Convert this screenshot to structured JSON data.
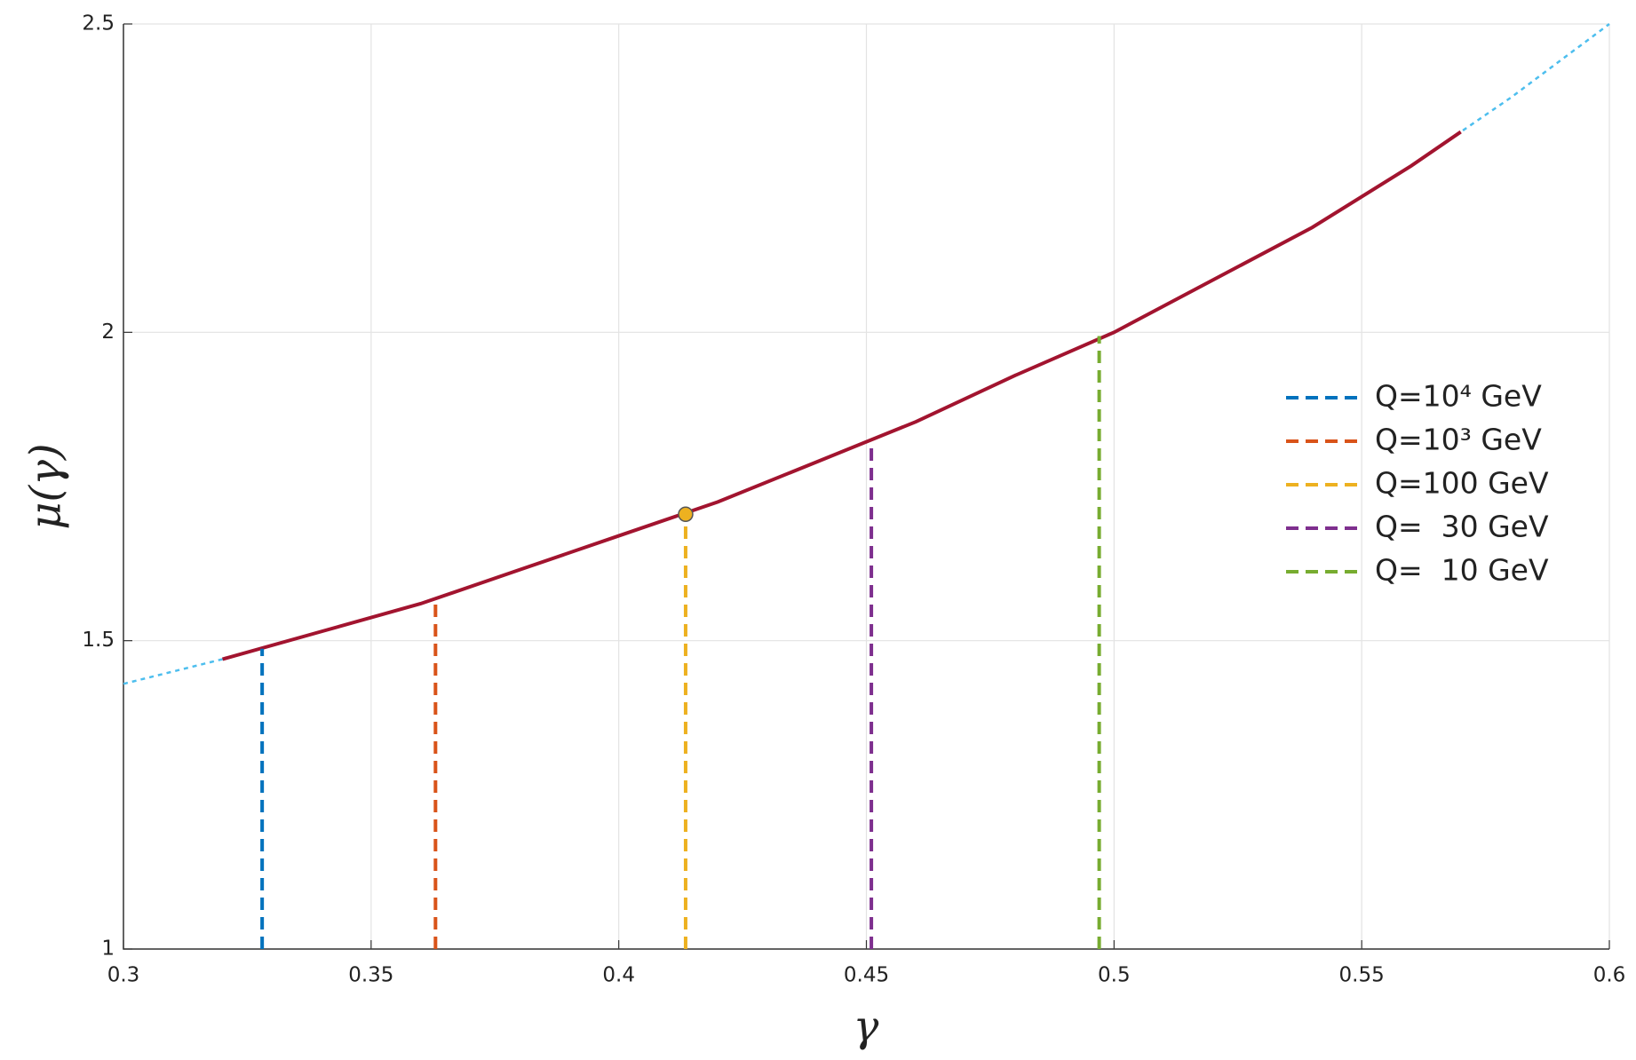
{
  "chart_data": {
    "type": "line",
    "xlabel": "γ",
    "ylabel": "μ(γ)",
    "xlim": [
      0.3,
      0.6
    ],
    "xticks": [
      0.3,
      0.35,
      0.4,
      0.45,
      0.5,
      0.55,
      0.6
    ],
    "ylim": [
      1,
      2.5
    ],
    "yticks": [
      1,
      1.5,
      2,
      2.5
    ],
    "grid": true,
    "legend": "right",
    "series": [
      {
        "color": "#4dbeee",
        "style": "dotted",
        "x": [
          0.3,
          0.32,
          0.34,
          0.36,
          0.38,
          0.4,
          0.42,
          0.44,
          0.46,
          0.48,
          0.5,
          0.52,
          0.54,
          0.56,
          0.58,
          0.6
        ],
        "values": [
          1.43,
          1.47,
          1.515,
          1.56,
          1.615,
          1.67,
          1.725,
          1.79,
          1.855,
          1.93,
          2.0,
          2.085,
          2.17,
          2.27,
          2.38,
          2.5
        ]
      },
      {
        "color": "#a2142f",
        "style": "solid",
        "x": [
          0.32,
          0.34,
          0.36,
          0.38,
          0.4,
          0.42,
          0.44,
          0.46,
          0.48,
          0.5,
          0.52,
          0.54,
          0.56,
          0.57
        ],
        "values": [
          1.47,
          1.515,
          1.56,
          1.615,
          1.67,
          1.725,
          1.79,
          1.855,
          1.93,
          2.0,
          2.085,
          2.17,
          2.27,
          2.325
        ]
      },
      {
        "name": "Q=10⁴ GeV",
        "color": "#0072bd",
        "style": "dashed",
        "x": [
          0.328,
          0.328
        ],
        "values": [
          1,
          1.487
        ]
      },
      {
        "name": "Q=10³ GeV",
        "color": "#d95319",
        "style": "dashed",
        "x": [
          0.363,
          0.363
        ],
        "values": [
          1,
          1.57
        ]
      },
      {
        "name": "Q=100 GeV",
        "color": "#edb120",
        "style": "dashed",
        "x": [
          0.4135,
          0.4135
        ],
        "values": [
          1,
          1.705
        ]
      },
      {
        "name": "Q=  30 GeV",
        "color": "#7e2f8e",
        "style": "dashed",
        "x": [
          0.451,
          0.451
        ],
        "values": [
          1,
          1.82
        ]
      },
      {
        "name": "Q=  10 GeV",
        "color": "#77ac30",
        "style": "dashed",
        "x": [
          0.497,
          0.497
        ],
        "values": [
          1,
          1.994
        ]
      },
      {
        "color": "#edb120",
        "style": "marker",
        "x": [
          0.4135
        ],
        "values": [
          1.705
        ]
      }
    ]
  }
}
